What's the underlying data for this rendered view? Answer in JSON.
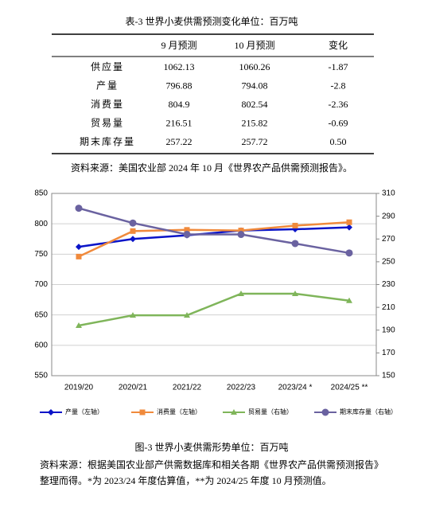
{
  "table": {
    "title": "表-3 世界小麦供需预测变化单位：百万吨",
    "header": [
      "9 月预测",
      "10 月预测",
      "变化"
    ],
    "rows": [
      [
        "供应量",
        "1062.13",
        "1060.26",
        "-1.87"
      ],
      [
        "产量",
        "796.88",
        "794.08",
        "-2.8"
      ],
      [
        "消费量",
        "804.9",
        "802.54",
        "-2.36"
      ],
      [
        "贸易量",
        "216.51",
        "215.82",
        "-0.69"
      ],
      [
        "期末库存量",
        "257.22",
        "257.72",
        "0.50"
      ]
    ],
    "source": "资料来源：美国农业部 2024 年 10 月《世界农产品供需预测报告》。"
  },
  "chart_data": {
    "type": "line",
    "categories": [
      "2019/20",
      "2020/21",
      "2021/22",
      "2022/23",
      "2023/24 *",
      "2024/25 **"
    ],
    "ylim": [
      550,
      850
    ],
    "yticks": [
      550,
      600,
      650,
      700,
      750,
      800,
      850
    ],
    "y2lim": [
      150,
      310
    ],
    "y2ticks": [
      150,
      170,
      190,
      210,
      230,
      250,
      270,
      290,
      310
    ],
    "grid": true,
    "series": [
      {
        "name": "产量（左轴）",
        "color": "#0a14c8",
        "marker": "diamond",
        "values": [
          762,
          775,
          781,
          789,
          791,
          794.08
        ]
      },
      {
        "name": "消费量（左轴）",
        "color": "#f08a3c",
        "marker": "square",
        "values": [
          746,
          788,
          790,
          789,
          797,
          802.54
        ]
      },
      {
        "name": "贸易量（右轴）",
        "color": "#7fb55a",
        "marker": "triangle",
        "axis": "y2",
        "values": [
          194,
          203,
          203,
          222,
          222,
          215.82
        ]
      },
      {
        "name": "期末库存量（右轴）",
        "color": "#6a62a0",
        "marker": "circle",
        "axis": "y2",
        "values": [
          297,
          284,
          274,
          274,
          266,
          257.72
        ]
      }
    ]
  },
  "caption": "图-3 世界小麦供需形势单位：百万吨",
  "notes": [
    "资料来源：根据美国农业部产供需数据库和相关各期《世界农产品供需预测报告》",
    "整理而得。*为 2023/24 年度估算值，**为 2024/25 年度 10 月预测值。"
  ]
}
